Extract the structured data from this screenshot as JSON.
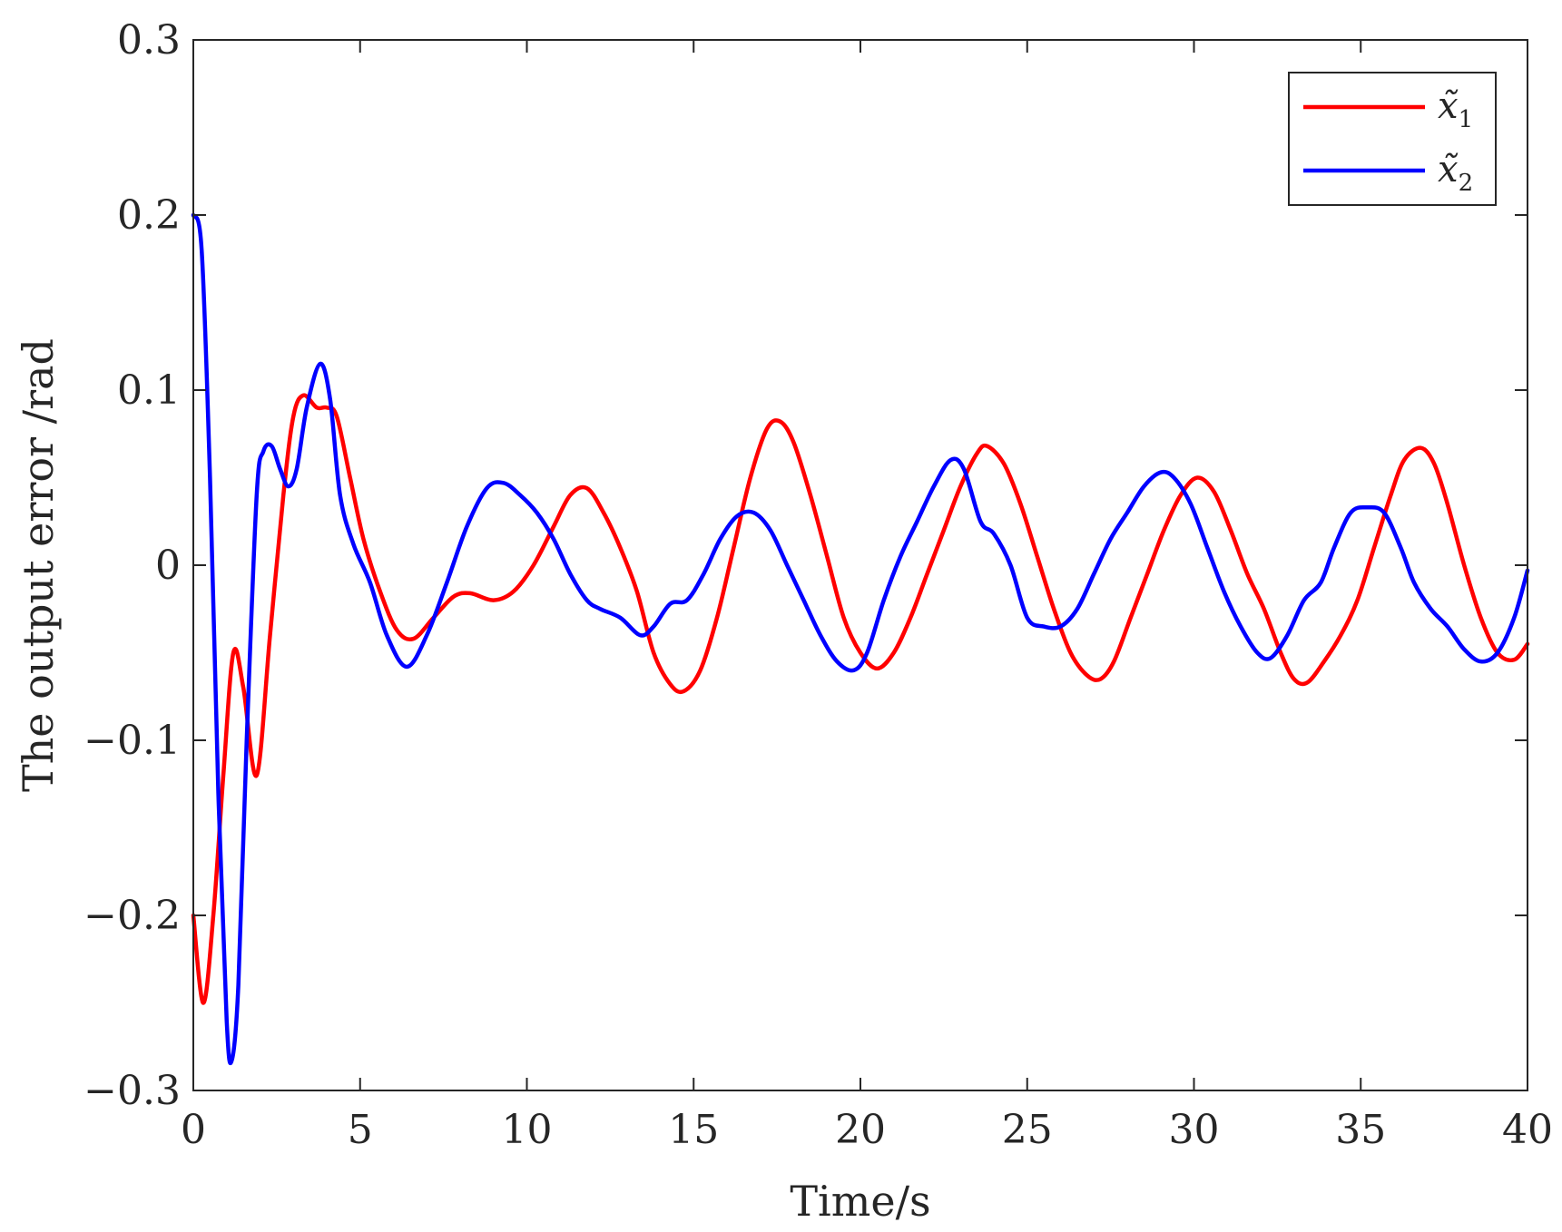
{
  "chart_data": {
    "type": "line",
    "title": "",
    "xlabel": "Time/s",
    "ylabel": "The output error /rad",
    "xlim": [
      0,
      40
    ],
    "ylim": [
      -0.3,
      0.3
    ],
    "xticks": [
      0,
      5,
      10,
      15,
      20,
      25,
      30,
      35,
      40
    ],
    "yticks": [
      -0.3,
      -0.2,
      -0.1,
      0,
      0.1,
      0.2,
      0.3
    ],
    "xtick_labels": [
      "0",
      "5",
      "10",
      "15",
      "20",
      "25",
      "30",
      "35",
      "40"
    ],
    "ytick_labels": [
      "−0.3",
      "−0.2",
      "−0.1",
      "0",
      "0.1",
      "0.2",
      "0.3"
    ],
    "grid": false,
    "legend_position": "top-right",
    "series": [
      {
        "name": "x̃",
        "subscript": "1",
        "color": "#ff0000",
        "x": [
          0,
          0.3,
          0.6,
          0.9,
          1.2,
          1.5,
          1.9,
          2.3,
          2.7,
          3.0,
          3.3,
          3.7,
          4.0,
          4.3,
          4.7,
          5.1,
          5.6,
          6.1,
          6.6,
          7.2,
          7.8,
          8.3,
          9.0,
          9.6,
          10.2,
          10.8,
          11.3,
          11.8,
          12.3,
          12.8,
          13.3,
          13.8,
          14.3,
          14.7,
          15.2,
          15.7,
          16.2,
          16.7,
          17.2,
          17.6,
          18.0,
          18.5,
          19.0,
          19.5,
          20.0,
          20.5,
          21.0,
          21.5,
          22.0,
          22.5,
          23.0,
          23.5,
          23.8,
          24.3,
          24.8,
          25.3,
          25.8,
          26.3,
          26.8,
          27.2,
          27.6,
          28.1,
          28.6,
          29.1,
          29.6,
          30.1,
          30.6,
          31.1,
          31.6,
          32.1,
          32.6,
          33.0,
          33.4,
          33.9,
          34.4,
          34.9,
          35.4,
          35.9,
          36.3,
          36.8,
          37.2,
          37.6,
          38.1,
          38.6,
          39.1,
          39.6,
          40.0
        ],
        "y": [
          -0.2,
          -0.25,
          -0.2,
          -0.12,
          -0.05,
          -0.07,
          -0.12,
          -0.04,
          0.04,
          0.085,
          0.097,
          0.09,
          0.09,
          0.085,
          0.05,
          0.015,
          -0.015,
          -0.037,
          -0.042,
          -0.03,
          -0.018,
          -0.016,
          -0.02,
          -0.015,
          0.0,
          0.022,
          0.04,
          0.044,
          0.03,
          0.01,
          -0.015,
          -0.05,
          -0.068,
          -0.072,
          -0.06,
          -0.03,
          0.01,
          0.05,
          0.078,
          0.082,
          0.07,
          0.04,
          0.005,
          -0.03,
          -0.05,
          -0.059,
          -0.05,
          -0.03,
          -0.005,
          0.02,
          0.045,
          0.064,
          0.068,
          0.058,
          0.035,
          0.005,
          -0.025,
          -0.05,
          -0.063,
          -0.065,
          -0.055,
          -0.03,
          -0.005,
          0.02,
          0.04,
          0.05,
          0.042,
          0.02,
          -0.005,
          -0.025,
          -0.05,
          -0.065,
          -0.067,
          -0.055,
          -0.04,
          -0.02,
          0.01,
          0.04,
          0.06,
          0.067,
          0.058,
          0.035,
          0.0,
          -0.03,
          -0.05,
          -0.054,
          -0.045
        ]
      },
      {
        "name": "x̃",
        "subscript": "2",
        "color": "#0000ff",
        "x": [
          0,
          0.25,
          0.5,
          0.75,
          1.0,
          1.15,
          1.35,
          1.6,
          1.9,
          2.1,
          2.35,
          2.6,
          2.85,
          3.1,
          3.4,
          3.8,
          4.1,
          4.4,
          4.8,
          5.3,
          5.8,
          6.4,
          7.0,
          7.6,
          8.2,
          8.8,
          9.3,
          9.8,
          10.3,
          10.8,
          11.3,
          11.8,
          12.2,
          12.8,
          13.4,
          13.8,
          14.3,
          14.8,
          15.3,
          15.8,
          16.3,
          16.8,
          17.3,
          17.8,
          18.3,
          18.8,
          19.3,
          19.8,
          20.2,
          20.7,
          21.2,
          21.7,
          22.2,
          22.7,
          23.1,
          23.6,
          24.0,
          24.5,
          25.0,
          25.5,
          26.0,
          26.5,
          27.0,
          27.5,
          28.0,
          28.5,
          29.0,
          29.4,
          29.9,
          30.4,
          30.9,
          31.4,
          31.9,
          32.3,
          32.8,
          33.3,
          33.8,
          34.2,
          34.7,
          35.2,
          35.7,
          36.2,
          36.6,
          37.1,
          37.6,
          38.1,
          38.6,
          39.1,
          39.6,
          40.0
        ],
        "y": [
          0.2,
          0.18,
          0.05,
          -0.13,
          -0.26,
          -0.283,
          -0.24,
          -0.1,
          0.04,
          0.065,
          0.068,
          0.055,
          0.045,
          0.055,
          0.09,
          0.115,
          0.095,
          0.04,
          0.012,
          -0.01,
          -0.04,
          -0.058,
          -0.04,
          -0.01,
          0.022,
          0.044,
          0.047,
          0.04,
          0.03,
          0.015,
          -0.005,
          -0.02,
          -0.025,
          -0.03,
          -0.04,
          -0.035,
          -0.022,
          -0.02,
          -0.005,
          0.015,
          0.028,
          0.03,
          0.02,
          0.0,
          -0.02,
          -0.04,
          -0.055,
          -0.06,
          -0.05,
          -0.02,
          0.005,
          0.025,
          0.045,
          0.06,
          0.055,
          0.025,
          0.018,
          0.0,
          -0.03,
          -0.035,
          -0.035,
          -0.025,
          -0.005,
          0.015,
          0.03,
          0.045,
          0.053,
          0.05,
          0.035,
          0.01,
          -0.015,
          -0.035,
          -0.05,
          -0.053,
          -0.04,
          -0.02,
          -0.01,
          0.01,
          0.03,
          0.033,
          0.03,
          0.01,
          -0.01,
          -0.025,
          -0.035,
          -0.048,
          -0.055,
          -0.05,
          -0.03,
          -0.003
        ]
      }
    ]
  }
}
